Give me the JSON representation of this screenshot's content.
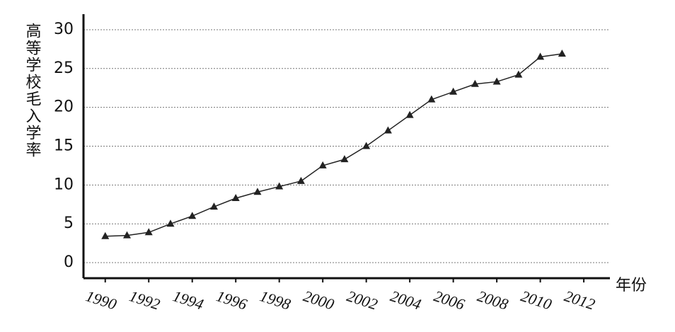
{
  "chart_data": {
    "type": "line",
    "y_label": "高等学校毛入学率",
    "x_label": "年份",
    "x": [
      1990,
      1991,
      1992,
      1993,
      1994,
      1995,
      1996,
      1997,
      1998,
      1999,
      2000,
      2001,
      2002,
      2003,
      2004,
      2005,
      2006,
      2007,
      2008,
      2009,
      2010,
      2011
    ],
    "series": [
      {
        "name": "高等学校毛入学率",
        "color": "#222222",
        "values": [
          3.4,
          3.5,
          3.9,
          5.0,
          6.0,
          7.2,
          8.3,
          9.1,
          9.8,
          10.5,
          12.5,
          13.3,
          15.0,
          17.0,
          19.0,
          21.0,
          22.0,
          23.0,
          23.3,
          24.2,
          26.5,
          26.9
        ]
      }
    ],
    "xlim": [
      1989,
      2013.2
    ],
    "xticks": [
      1990,
      1992,
      1994,
      1996,
      1998,
      2000,
      2002,
      2004,
      2006,
      2008,
      2010,
      2012
    ],
    "ylim": [
      -2,
      32
    ],
    "yticks": [
      0,
      5,
      10,
      15,
      20,
      25,
      30
    ],
    "grid": true
  }
}
